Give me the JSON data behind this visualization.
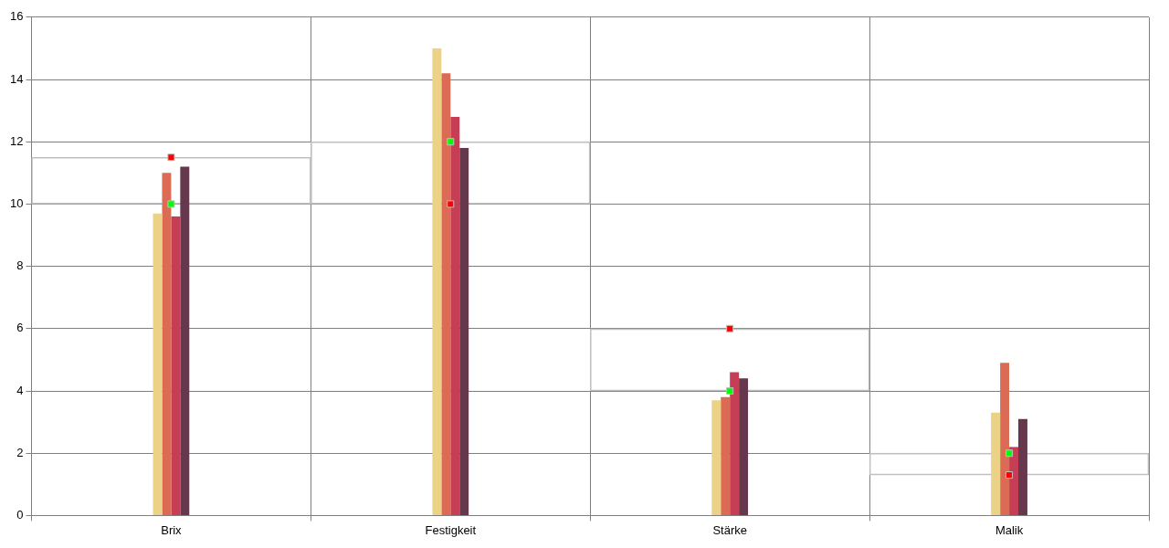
{
  "chart_data": {
    "type": "bar",
    "categories": [
      "Brix",
      "Festigkeit",
      "Stärke",
      "Malik"
    ],
    "series": [
      {
        "color": "#ecd286",
        "values": [
          9.7,
          15.0,
          3.7,
          3.3
        ]
      },
      {
        "color": "#dc6b55",
        "values": [
          11.0,
          14.2,
          3.8,
          4.9
        ]
      },
      {
        "color": "#c53e55",
        "values": [
          9.6,
          12.8,
          4.6,
          2.2
        ]
      },
      {
        "color": "#65384d",
        "values": [
          11.2,
          11.8,
          4.4,
          3.1
        ]
      },
      {
        "type": "bar",
        "color": "#c0c0c0",
        "base": [
          10,
          10,
          4,
          1.3
        ],
        "values": [
          1.5,
          2,
          2,
          0.7
        ]
      },
      {
        "type": "scatter",
        "color": "#00ff00",
        "x": [
          "Brix",
          "Festigkeit",
          "Stärke",
          "Malik"
        ],
        "values": [
          10,
          12,
          4,
          2
        ]
      },
      {
        "type": "scatter",
        "color": "#ff0000",
        "x": [
          "Brix",
          "Festigkeit",
          "Stärke",
          "Malik"
        ],
        "values": [
          11.5,
          10,
          6,
          1.3
        ]
      }
    ],
    "ylim": [
      0,
      16
    ],
    "yticks": [
      0,
      2,
      4,
      6,
      8,
      10,
      12,
      14,
      16
    ],
    "grid": true,
    "legend": false,
    "marker": "square"
  }
}
